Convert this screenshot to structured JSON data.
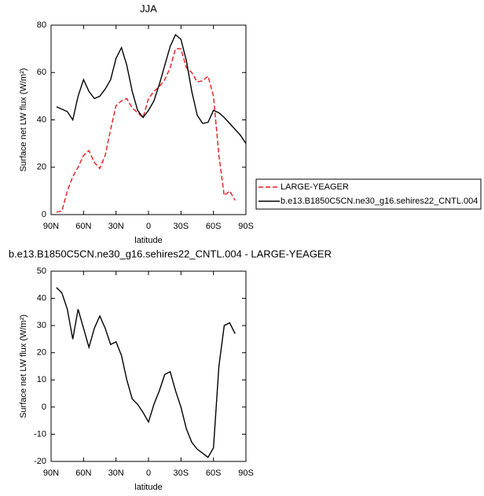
{
  "chart_data": [
    {
      "type": "line",
      "title": "JJA",
      "xlabel": "latitude",
      "ylabel": "Surface net LW flux (W/m²)",
      "x": [
        85,
        80,
        75,
        70,
        65,
        60,
        55,
        50,
        45,
        40,
        35,
        30,
        25,
        20,
        15,
        10,
        5,
        0,
        -5,
        -10,
        -15,
        -20,
        -25,
        -30,
        -35,
        -40,
        -45,
        -50,
        -55,
        -60,
        -65,
        -70,
        -75,
        -80,
        -85,
        -90
      ],
      "xlim": [
        90,
        -90
      ],
      "xticks": [
        {
          "value": 90,
          "label": "90N"
        },
        {
          "value": 60,
          "label": "60N"
        },
        {
          "value": 30,
          "label": "30N"
        },
        0,
        {
          "value": -30,
          "label": "30S"
        },
        {
          "value": -60,
          "label": "60S"
        },
        {
          "value": -90,
          "label": "90S"
        }
      ],
      "ylim": [
        0,
        80
      ],
      "yticks": [
        0,
        20,
        40,
        60,
        80
      ],
      "legend": "right",
      "series": [
        {
          "name": "LARGE-YEAGER",
          "color": "#e41a1c",
          "dash": true,
          "values": [
            1,
            1.5,
            10,
            16,
            20,
            25,
            27,
            22,
            19.5,
            25,
            36,
            46,
            48,
            49,
            45,
            43,
            41,
            49,
            52,
            54,
            57,
            62,
            70,
            70,
            62,
            60,
            56,
            56.5,
            58.5,
            50,
            25,
            8,
            10,
            6,
            null,
            null
          ]
        },
        {
          "name": "b.e13.B1850C5CN.ne30_g16.sehires22_CNTL.004",
          "color": "#000000",
          "dash": false,
          "values": [
            45.5,
            44.5,
            43.5,
            40,
            50,
            57,
            52,
            49,
            50,
            53,
            57,
            66,
            70.5,
            63,
            52,
            44,
            41,
            44,
            48,
            55,
            63,
            71,
            76,
            74,
            65,
            52,
            42,
            38.5,
            39,
            44,
            43,
            41,
            38.5,
            36,
            33.5,
            30
          ]
        }
      ]
    },
    {
      "type": "line",
      "title": "b.e13.B1850C5CN.ne30_g16.sehires22_CNTL.004 - LARGE-YEAGER",
      "xlabel": "latitude",
      "ylabel": "Surface net LW flux (W/m²)",
      "x": [
        85,
        80,
        75,
        70,
        65,
        60,
        55,
        50,
        45,
        40,
        35,
        30,
        25,
        20,
        15,
        10,
        5,
        0,
        -5,
        -10,
        -15,
        -20,
        -25,
        -30,
        -35,
        -40,
        -45,
        -50,
        -55,
        -60,
        -65,
        -70,
        -75,
        -80,
        -85,
        -90
      ],
      "xlim": [
        90,
        -90
      ],
      "xticks": [
        {
          "value": 90,
          "label": "90N"
        },
        {
          "value": 60,
          "label": "60N"
        },
        {
          "value": 30,
          "label": "30N"
        },
        0,
        {
          "value": -30,
          "label": "30S"
        },
        {
          "value": -60,
          "label": "60S"
        },
        {
          "value": -90,
          "label": "90S"
        }
      ],
      "ylim": [
        -20,
        50
      ],
      "yticks": [
        -20,
        -10,
        0,
        10,
        20,
        30,
        40,
        50
      ],
      "series": [
        {
          "color": "#000000",
          "dash": false,
          "values": [
            44,
            42,
            36,
            25,
            36,
            29,
            22,
            29,
            33.5,
            29,
            23,
            24,
            19,
            10,
            3,
            1,
            -2,
            -5.5,
            1,
            6,
            12,
            13,
            6,
            0,
            -8,
            -13,
            -15.5,
            -17,
            -18.5,
            -15,
            15,
            30,
            31,
            27,
            null,
            null
          ]
        }
      ]
    }
  ]
}
